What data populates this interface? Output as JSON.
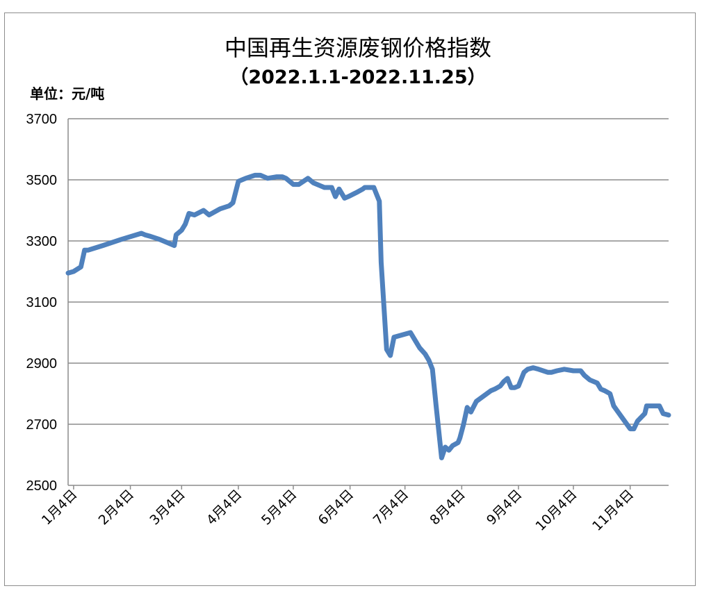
{
  "chart_data": {
    "type": "line",
    "title": "中国再生资源废钢价格指数",
    "subtitle": "（2022.1.1-2022.11.25）",
    "ylabel": "单位：元/吨",
    "ylim": [
      2500,
      3700
    ],
    "yticks": [
      "3700",
      "3500",
      "3300",
      "3100",
      "2900",
      "2700",
      "2500"
    ],
    "categories": [
      "1月4日",
      "2月4日",
      "3月4日",
      "4月4日",
      "5月4日",
      "6月4日",
      "7月4日",
      "8月4日",
      "9月4日",
      "10月4日",
      "11月4日"
    ],
    "grid": true,
    "legend": "none",
    "color": "#4f81bd",
    "series": [
      {
        "x": [
          "2022-01-01",
          "2022-01-04",
          "2022-01-08",
          "2022-01-10",
          "2022-01-12",
          "2022-01-20",
          "2022-01-30",
          "2022-02-10",
          "2022-02-12",
          "2022-02-15",
          "2022-02-20",
          "2022-02-26",
          "2022-02-28",
          "2022-03-01",
          "2022-03-04",
          "2022-03-06",
          "2022-03-08",
          "2022-03-11",
          "2022-03-16",
          "2022-03-19",
          "2022-03-22",
          "2022-03-25",
          "2022-03-30",
          "2022-04-01",
          "2022-04-04",
          "2022-04-08",
          "2022-04-13",
          "2022-04-16",
          "2022-04-20",
          "2022-04-25",
          "2022-04-28",
          "2022-04-30",
          "2022-05-04",
          "2022-05-07",
          "2022-05-12",
          "2022-05-15",
          "2022-05-19",
          "2022-05-21",
          "2022-05-22",
          "2022-05-25",
          "2022-05-27",
          "2022-05-29",
          "2022-06-01",
          "2022-06-03",
          "2022-06-08",
          "2022-06-11",
          "2022-06-12",
          "2022-06-14",
          "2022-06-17",
          "2022-06-18",
          "2022-06-20",
          "2022-06-21",
          "2022-06-24",
          "2022-06-26",
          "2022-06-28",
          "2022-07-07",
          "2022-07-10",
          "2022-07-12",
          "2022-07-15",
          "2022-07-17",
          "2022-07-19",
          "2022-07-21",
          "2022-07-24",
          "2022-07-26",
          "2022-07-28",
          "2022-07-30",
          "2022-08-02",
          "2022-08-03",
          "2022-08-05",
          "2022-08-07",
          "2022-08-09",
          "2022-08-12",
          "2022-08-20",
          "2022-08-22",
          "2022-08-25",
          "2022-08-27",
          "2022-08-29",
          "2022-08-31",
          "2022-09-02",
          "2022-09-04",
          "2022-09-07",
          "2022-09-09",
          "2022-09-12",
          "2022-09-15",
          "2022-09-20",
          "2022-09-22",
          "2022-09-25",
          "2022-09-29",
          "2022-10-04",
          "2022-10-08",
          "2022-10-10",
          "2022-10-13",
          "2022-10-17",
          "2022-10-19",
          "2022-10-21",
          "2022-10-24",
          "2022-10-26",
          "2022-11-04",
          "2022-11-06",
          "2022-11-08",
          "2022-11-12",
          "2022-11-13",
          "2022-11-20",
          "2022-11-22",
          "2022-11-25"
        ],
        "y": [
          3195,
          3200,
          3215,
          3270,
          3270,
          3285,
          3305,
          3325,
          3320,
          3315,
          3305,
          3290,
          3285,
          3320,
          3335,
          3355,
          3390,
          3385,
          3400,
          3385,
          3395,
          3405,
          3415,
          3425,
          3495,
          3505,
          3515,
          3515,
          3505,
          3510,
          3510,
          3505,
          3485,
          3485,
          3505,
          3490,
          3480,
          3475,
          3475,
          3475,
          3445,
          3470,
          3440,
          3445,
          3460,
          3470,
          3475,
          3475,
          3475,
          3460,
          3430,
          3230,
          2945,
          2925,
          2985,
          3000,
          2970,
          2950,
          2930,
          2910,
          2880,
          2760,
          2590,
          2625,
          2615,
          2630,
          2640,
          2655,
          2700,
          2755,
          2740,
          2775,
          2810,
          2815,
          2825,
          2840,
          2850,
          2820,
          2820,
          2825,
          2870,
          2880,
          2885,
          2880,
          2870,
          2870,
          2875,
          2880,
          2875,
          2875,
          2860,
          2845,
          2835,
          2815,
          2810,
          2800,
          2760,
          2685,
          2685,
          2710,
          2735,
          2760,
          2760,
          2735,
          2730
        ]
      }
    ]
  }
}
